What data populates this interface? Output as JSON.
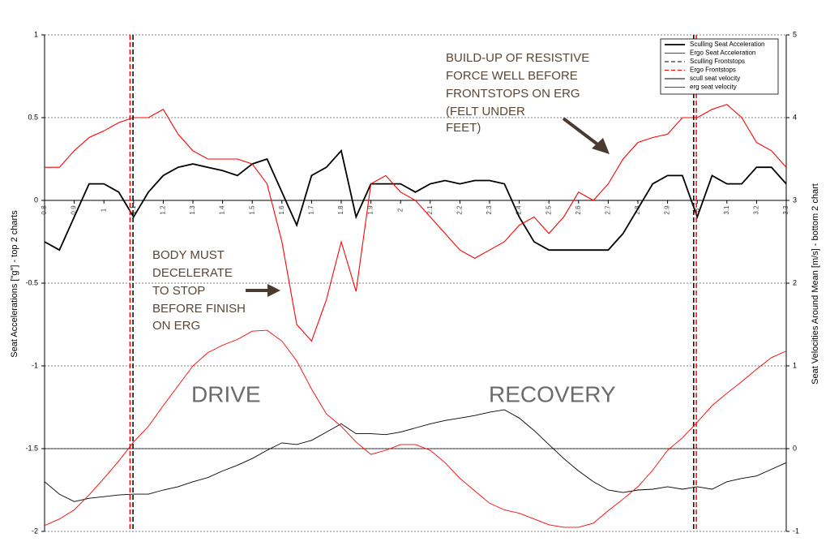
{
  "chart_data": {
    "type": "line",
    "y_label": "Seat Accelerations [\"g\"] - top 2 charts",
    "y2_label": "Seat Velocities Around Mean [m/s] - bottom 2 chart",
    "xlim": [
      0.8,
      3.3
    ],
    "xticks": [
      0.8,
      0.9,
      1,
      1.1,
      1.2,
      1.3,
      1.4,
      1.5,
      1.6,
      1.7,
      1.8,
      1.9,
      2,
      2.1,
      2.2,
      2.3,
      2.4,
      2.5,
      2.6,
      2.7,
      2.8,
      2.9,
      3,
      3.1,
      3.2,
      3.3
    ],
    "ylim": [
      -2,
      1
    ],
    "yticks": [
      -2,
      -1.5,
      -1,
      -0.5,
      0,
      0.5,
      1
    ],
    "y2lim": [
      -1,
      5
    ],
    "y2ticks": [
      -1,
      0,
      1,
      2,
      3,
      4,
      5
    ],
    "grid": true,
    "legend": "upper right",
    "x": [
      0.8,
      0.85,
      0.9,
      0.95,
      1.0,
      1.05,
      1.1,
      1.15,
      1.2,
      1.25,
      1.3,
      1.35,
      1.4,
      1.45,
      1.5,
      1.55,
      1.6,
      1.65,
      1.7,
      1.75,
      1.8,
      1.85,
      1.9,
      1.95,
      2.0,
      2.05,
      2.1,
      2.15,
      2.2,
      2.25,
      2.3,
      2.35,
      2.4,
      2.45,
      2.5,
      2.55,
      2.6,
      2.65,
      2.7,
      2.75,
      2.8,
      2.85,
      2.9,
      2.95,
      3.0,
      3.05,
      3.1,
      3.15,
      3.2,
      3.25,
      3.3
    ],
    "series": [
      {
        "name": "Sculling Seat Acceleration",
        "color": "#000000",
        "values": [
          -0.25,
          -0.3,
          -0.1,
          0.1,
          0.1,
          0.05,
          -0.1,
          0.05,
          0.15,
          0.2,
          0.22,
          0.2,
          0.18,
          0.15,
          0.22,
          0.25,
          0.05,
          -0.15,
          0.15,
          0.2,
          0.3,
          -0.1,
          0.1,
          0.1,
          0.1,
          0.05,
          0.1,
          0.12,
          0.1,
          0.12,
          0.12,
          0.1,
          -0.1,
          -0.25,
          -0.3,
          -0.3,
          -0.3,
          -0.3,
          -0.3,
          -0.2,
          -0.05,
          0.1,
          0.15,
          0.15,
          -0.1,
          0.15,
          0.1,
          0.1,
          0.2,
          0.2,
          0.1
        ]
      },
      {
        "name": "Ergo Seat Acceleration",
        "color": "#ff0000",
        "values": [
          0.2,
          0.2,
          0.3,
          0.38,
          0.42,
          0.47,
          0.5,
          0.5,
          0.55,
          0.4,
          0.3,
          0.25,
          0.25,
          0.25,
          0.22,
          0.1,
          -0.25,
          -0.75,
          -0.85,
          -0.6,
          -0.25,
          -0.55,
          0.1,
          0.15,
          0.05,
          0.0,
          -0.1,
          -0.2,
          -0.3,
          -0.35,
          -0.3,
          -0.25,
          -0.15,
          -0.1,
          -0.2,
          -0.1,
          0.05,
          0.0,
          0.1,
          0.25,
          0.35,
          0.38,
          0.4,
          0.5,
          0.5,
          0.55,
          0.58,
          0.5,
          0.35,
          0.3,
          0.2
        ]
      },
      {
        "name": "Sculling Frontstops",
        "color": "#000000",
        "dashed": true,
        "positions": [
          1.098,
          2.988
        ]
      },
      {
        "name": "Ergo Frontstops",
        "color": "#ff0000",
        "dashed": true,
        "positions": [
          1.088,
          2.997
        ]
      },
      {
        "name": "scull seat velocity",
        "color": "#000000",
        "axis": "y2",
        "values": [
          -0.4,
          -0.55,
          -0.64,
          -0.6,
          -0.58,
          -0.56,
          -0.55,
          -0.55,
          -0.5,
          -0.46,
          -0.4,
          -0.35,
          -0.27,
          -0.2,
          -0.12,
          -0.02,
          0.07,
          0.05,
          0.1,
          0.2,
          0.3,
          0.18,
          0.18,
          0.17,
          0.2,
          0.25,
          0.3,
          0.34,
          0.37,
          0.4,
          0.44,
          0.47,
          0.37,
          0.22,
          0.05,
          -0.12,
          -0.27,
          -0.4,
          -0.5,
          -0.53,
          -0.5,
          -0.49,
          -0.46,
          -0.49,
          -0.46,
          -0.49,
          -0.4,
          -0.36,
          -0.33,
          -0.25,
          -0.17
        ]
      },
      {
        "name": "erg seat velocity",
        "color": "#ff0000",
        "axis": "y2",
        "values": [
          -0.93,
          -0.85,
          -0.74,
          -0.56,
          -0.36,
          -0.15,
          0.08,
          0.27,
          0.52,
          0.76,
          1.0,
          1.16,
          1.25,
          1.32,
          1.42,
          1.43,
          1.3,
          1.06,
          0.72,
          0.42,
          0.27,
          0.08,
          -0.07,
          -0.02,
          0.05,
          0.05,
          -0.02,
          -0.17,
          -0.36,
          -0.51,
          -0.66,
          -0.74,
          -0.78,
          -0.85,
          -0.92,
          -0.95,
          -0.95,
          -0.9,
          -0.75,
          -0.61,
          -0.46,
          -0.26,
          -0.02,
          0.13,
          0.32,
          0.52,
          0.67,
          0.81,
          0.96,
          1.1,
          1.18
        ]
      }
    ],
    "annotations": [
      [
        "BUILD-UP OF RESISTIVE",
        "FORCE WELL BEFORE",
        "FRONTSTOPS ON ERG",
        "(FELT UNDER",
        "FEET)"
      ],
      [
        "BODY MUST",
        "DECELERATE",
        "TO STOP",
        "BEFORE FINISH",
        "ON ERG"
      ]
    ],
    "phase_labels": [
      "DRIVE",
      "RECOVERY"
    ]
  }
}
